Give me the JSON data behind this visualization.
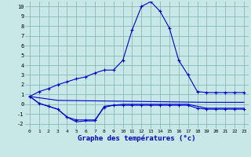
{
  "xlabel": "Graphe des températures (°c)",
  "background_color": "#c8e8e8",
  "grid_color": "#88b8b8",
  "line_color": "#0000cc",
  "xlim": [
    -0.5,
    23.5
  ],
  "ylim": [
    -2.5,
    10.5
  ],
  "xticks": [
    0,
    1,
    2,
    3,
    4,
    5,
    6,
    7,
    8,
    9,
    10,
    11,
    12,
    13,
    14,
    15,
    16,
    17,
    18,
    19,
    20,
    21,
    22,
    23
  ],
  "yticks": [
    -2,
    -1,
    0,
    1,
    2,
    3,
    4,
    5,
    6,
    7,
    8,
    9,
    10
  ],
  "series1_x": [
    0,
    1,
    2,
    3,
    4,
    5,
    6,
    7,
    8,
    9,
    10,
    11,
    12,
    13,
    14,
    15,
    16,
    17,
    18,
    19,
    20,
    21,
    22,
    23
  ],
  "series1_y": [
    0.8,
    1.3,
    1.6,
    2.0,
    2.3,
    2.6,
    2.8,
    3.2,
    3.5,
    3.5,
    4.5,
    7.6,
    10.0,
    10.5,
    9.5,
    7.8,
    4.5,
    3.0,
    1.3,
    1.2,
    1.2,
    1.2,
    1.2,
    1.2
  ],
  "series2_x": [
    0,
    1,
    2,
    3,
    4,
    5,
    6,
    7,
    8,
    9,
    10,
    11,
    12,
    13,
    14,
    15,
    16,
    17,
    18,
    19,
    20,
    21,
    22,
    23
  ],
  "series2_y": [
    0.8,
    0.1,
    -0.2,
    -0.5,
    -1.3,
    -1.6,
    -1.6,
    -1.6,
    -0.3,
    -0.1,
    -0.1,
    -0.1,
    -0.1,
    -0.1,
    -0.1,
    -0.1,
    -0.1,
    -0.1,
    -0.4,
    -0.5,
    -0.5,
    -0.5,
    -0.5,
    -0.5
  ],
  "series3_x": [
    0,
    1,
    2,
    3,
    4,
    5,
    6,
    7,
    8,
    9,
    10,
    11,
    12,
    13,
    14,
    15,
    16,
    17,
    18,
    19,
    20,
    21,
    22,
    23
  ],
  "series3_y": [
    0.8,
    0.1,
    -0.2,
    -0.5,
    -1.3,
    -1.8,
    -1.7,
    -1.7,
    -0.2,
    -0.1,
    0.0,
    0.0,
    0.0,
    0.0,
    0.0,
    0.0,
    0.0,
    0.0,
    -0.2,
    -0.4,
    -0.4,
    -0.4,
    -0.4,
    -0.4
  ],
  "series4_x": [
    0,
    3,
    19,
    23
  ],
  "series4_y": [
    0.8,
    0.4,
    0.2,
    0.2
  ]
}
